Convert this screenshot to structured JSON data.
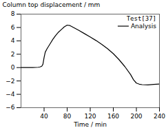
{
  "chart_data": {
    "type": "line",
    "xlabel": "Time / min",
    "ylabel": "Column top displacement / mm",
    "x": [
      0,
      5,
      10,
      15,
      20,
      25,
      30,
      33,
      36,
      38,
      40,
      42,
      45,
      50,
      55,
      60,
      65,
      70,
      75,
      80,
      85,
      90,
      95,
      100,
      110,
      120,
      130,
      140,
      150,
      160,
      170,
      180,
      190,
      195,
      200,
      205,
      210,
      220,
      230,
      240
    ],
    "series": [
      {
        "name": "Analysis",
        "color": "#000000",
        "values": [
          0,
          0.0,
          0.0,
          0.0,
          0.0,
          0.02,
          0.05,
          0.1,
          0.2,
          0.5,
          1.5,
          2.3,
          2.8,
          3.5,
          4.2,
          4.8,
          5.3,
          5.7,
          6.1,
          6.35,
          6.28,
          6.05,
          5.82,
          5.58,
          5.08,
          4.58,
          4.05,
          3.48,
          2.82,
          2.08,
          1.18,
          0.15,
          -1.05,
          -1.82,
          -2.32,
          -2.48,
          -2.55,
          -2.58,
          -2.52,
          -2.45
        ]
      }
    ],
    "annotations": [
      "Test[37]"
    ],
    "xlim": [
      0,
      240
    ],
    "ylim": [
      -6,
      8
    ],
    "xticks": [
      40,
      80,
      120,
      160,
      200,
      240
    ],
    "yticks": [
      -6,
      -4,
      -2,
      0,
      2,
      4,
      6,
      8
    ],
    "grid": false,
    "legend": "top-right"
  }
}
